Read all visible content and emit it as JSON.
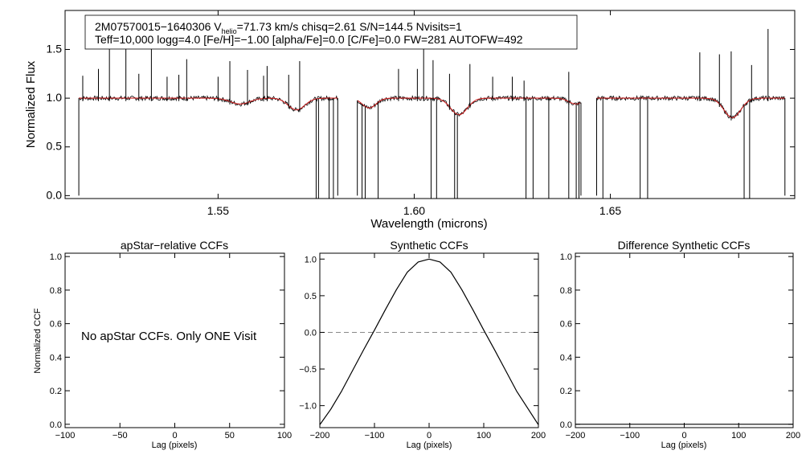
{
  "chart_data": [
    {
      "type": "line",
      "title": "",
      "xlabel": "Wavelength (microns)",
      "ylabel": "Normalized Flux",
      "xlim": [
        1.511,
        1.697
      ],
      "ylim": [
        -0.03,
        1.9
      ],
      "xticks": [
        "1.55",
        "1.60",
        "1.65"
      ],
      "yticks": [
        "0.0",
        "0.5",
        "1.0",
        "1.5"
      ],
      "info_box": {
        "line1_pre": "2M07570015−1640306  V",
        "line1_sub": "helio",
        "line1_post": "=71.73 km/s  chisq=2.61  S/N=144.5  Nvisits=1",
        "line2": "Teff=10,000 logg=4.0 [Fe/H]=−1.00 [alpha/Fe]=0.0 [C/Fe]=0.0 FW=281 AUTOFW=492"
      },
      "series": [
        {
          "name": "observed spectrum",
          "color": "#000000"
        },
        {
          "name": "model spectrum",
          "color": "#cc2222"
        }
      ],
      "chip_ranges": [
        [
          1.5145,
          1.5805
        ],
        [
          1.5855,
          1.6425
        ],
        [
          1.6465,
          1.6945
        ]
      ],
      "absorption_lines": [
        {
          "center": 1.5556,
          "depth": 0.06,
          "width": 0.0035
        },
        {
          "center": 1.57,
          "depth": 0.12,
          "width": 0.003
        },
        {
          "center": 1.5885,
          "depth": 0.1,
          "width": 0.0025
        },
        {
          "center": 1.6114,
          "depth": 0.17,
          "width": 0.003
        },
        {
          "center": 1.6412,
          "depth": 0.06,
          "width": 0.0025
        },
        {
          "center": 1.6811,
          "depth": 0.2,
          "width": 0.003
        }
      ],
      "emission_spikes": [
        {
          "x": 1.5155,
          "v": 1.23
        },
        {
          "x": 1.5195,
          "v": 1.3
        },
        {
          "x": 1.5223,
          "v": 1.77
        },
        {
          "x": 1.5265,
          "v": 1.54
        },
        {
          "x": 1.5298,
          "v": 1.25
        },
        {
          "x": 1.533,
          "v": 1.75
        },
        {
          "x": 1.537,
          "v": 1.22
        },
        {
          "x": 1.54,
          "v": 1.24
        },
        {
          "x": 1.542,
          "v": 1.4
        },
        {
          "x": 1.55,
          "v": 1.22
        },
        {
          "x": 1.553,
          "v": 1.38
        },
        {
          "x": 1.5575,
          "v": 1.29
        },
        {
          "x": 1.5616,
          "v": 1.23
        },
        {
          "x": 1.5625,
          "v": 1.33
        },
        {
          "x": 1.568,
          "v": 1.24
        },
        {
          "x": 1.5708,
          "v": 1.38
        },
        {
          "x": 1.596,
          "v": 1.3
        },
        {
          "x": 1.6008,
          "v": 1.3
        },
        {
          "x": 1.6024,
          "v": 1.61
        },
        {
          "x": 1.6048,
          "v": 1.39
        },
        {
          "x": 1.609,
          "v": 1.25
        },
        {
          "x": 1.6142,
          "v": 1.35
        },
        {
          "x": 1.62,
          "v": 1.22
        },
        {
          "x": 1.625,
          "v": 1.22
        },
        {
          "x": 1.628,
          "v": 1.18
        },
        {
          "x": 1.6394,
          "v": 1.27
        },
        {
          "x": 1.6728,
          "v": 1.47
        },
        {
          "x": 1.6778,
          "v": 1.45
        },
        {
          "x": 1.6808,
          "v": 1.48
        },
        {
          "x": 1.686,
          "v": 1.34
        },
        {
          "x": 1.6902,
          "v": 1.71
        }
      ],
      "dropouts": [
        1.575,
        1.5756,
        1.5783,
        1.5794,
        1.5867,
        1.5875,
        1.5908,
        1.6043,
        1.6057,
        1.6103,
        1.611,
        1.6285,
        1.6303,
        1.6343,
        1.6394,
        1.6413,
        1.642,
        1.6481,
        1.6576,
        1.6595,
        1.6841,
        1.6855
      ]
    },
    {
      "type": "line",
      "title": "apStar−relative CCFs",
      "xlabel": "Lag (pixels)",
      "ylabel": "Normalized CCF",
      "xlim": [
        -100,
        100
      ],
      "ylim": [
        -0.02,
        1.02
      ],
      "xticks": [
        -100,
        -50,
        0,
        50,
        100
      ],
      "yticks": [
        "0.0",
        "0.2",
        "0.4",
        "0.6",
        "0.8",
        "1.0"
      ],
      "annotation": "No apStar CCFs.  Only ONE Visit",
      "series": []
    },
    {
      "type": "line",
      "title": "Synthetic CCFs",
      "xlabel": "Lag (pixels)",
      "ylabel": "",
      "xlim": [
        -200,
        200
      ],
      "ylim": [
        -1.3,
        1.08
      ],
      "xticks": [
        -200,
        -100,
        0,
        100,
        200
      ],
      "yticks": [
        "1.0",
        "0.5",
        "0.0",
        "−0.5",
        "−1.0"
      ],
      "reference_line": 0.0,
      "series": [
        {
          "name": "synthetic CCF",
          "x": [
            -200,
            -180,
            -160,
            -140,
            -120,
            -100,
            -80,
            -60,
            -40,
            -20,
            0,
            20,
            40,
            60,
            80,
            100,
            120,
            140,
            160,
            200
          ],
          "y": [
            -1.26,
            -1.05,
            -0.8,
            -0.52,
            -0.24,
            0.03,
            0.31,
            0.58,
            0.82,
            0.96,
            1.0,
            0.96,
            0.82,
            0.58,
            0.31,
            0.03,
            -0.24,
            -0.52,
            -0.8,
            -1.26
          ]
        }
      ]
    },
    {
      "type": "line",
      "title": "Difference Synthetic CCFs",
      "xlabel": "Lag (pixels)",
      "ylabel": "",
      "xlim": [
        -200,
        200
      ],
      "ylim": [
        -0.02,
        1.02
      ],
      "xticks": [
        -200,
        -100,
        0,
        100,
        200
      ],
      "yticks": [
        "0.0",
        "0.2",
        "0.4",
        "0.6",
        "0.8",
        "1.0"
      ],
      "series": [
        {
          "name": "difference CCF",
          "x": [
            -200,
            200
          ],
          "y": [
            0.0,
            0.0
          ]
        }
      ]
    }
  ]
}
